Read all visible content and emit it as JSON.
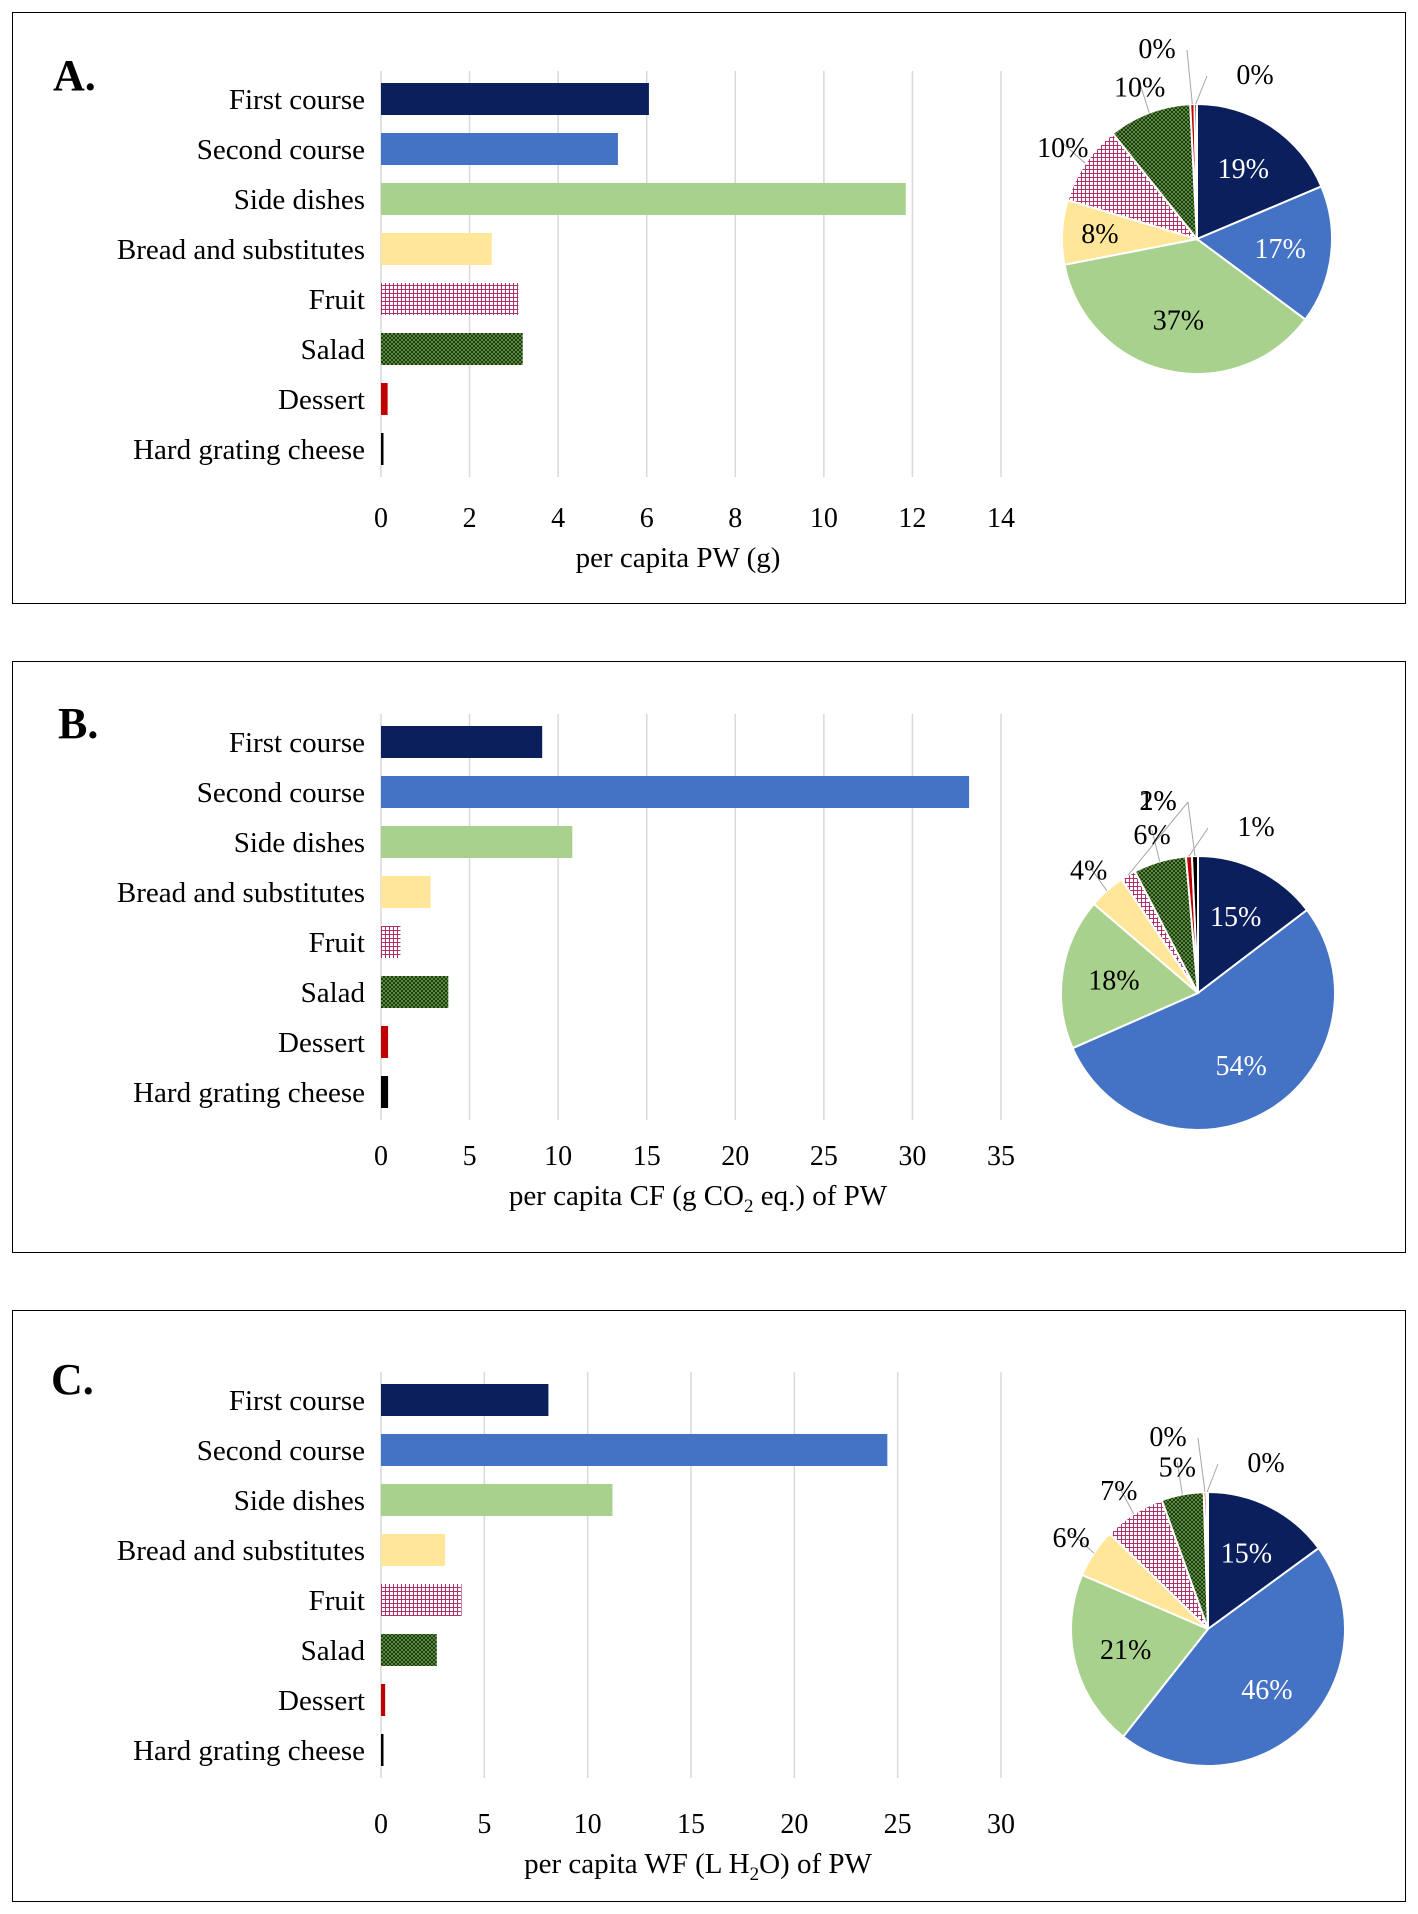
{
  "patterns": {
    "fruit": {
      "fg": "#b0306a",
      "bg": "#ffffff"
    },
    "salad": {
      "fg": "#1d3c14",
      "bg": "#5b8a3c"
    }
  },
  "chart_data": [
    {
      "type": "bar",
      "panel": "A.",
      "orientation": "horizontal",
      "categories": [
        "First course",
        "Second course",
        "Side dishes",
        "Bread and substitutes",
        "Fruit",
        "Salad",
        "Dessert",
        "Hard grating cheese"
      ],
      "values": [
        6.05,
        5.35,
        11.85,
        2.5,
        3.1,
        3.2,
        0.15,
        0.03
      ],
      "colors": [
        "#0b1f5c",
        "#4472c4",
        "#a9d18e",
        "#ffe699",
        "pattern:fruit",
        "pattern:salad",
        "#c00000",
        "#000000"
      ],
      "xlim": [
        0,
        14
      ],
      "xticks": [
        "0",
        "2",
        "4",
        "6",
        "8",
        "10",
        "12",
        "14"
      ],
      "xlabel_parts": [
        "per capita PW (g)"
      ],
      "grid": true,
      "pie": {
        "order": [
          "First course",
          "Second course",
          "Side dishes",
          "Bread and substitutes",
          "Fruit",
          "Salad",
          "Dessert",
          "Hard grating cheese"
        ],
        "values": [
          18.6,
          16.5,
          36.7,
          7.7,
          9.6,
          9.9,
          0.5,
          0.3
        ],
        "labels": [
          "19%",
          "17%",
          "37%",
          "8%",
          "10%",
          "10%",
          "0%",
          "0%"
        ]
      }
    },
    {
      "type": "bar",
      "panel": "B.",
      "orientation": "horizontal",
      "categories": [
        "First course",
        "Second course",
        "Side dishes",
        "Bread and substitutes",
        "Fruit",
        "Salad",
        "Dessert",
        "Hard grating cheese"
      ],
      "values": [
        9.1,
        33.2,
        10.8,
        2.8,
        1.1,
        3.8,
        0.4,
        0.4
      ],
      "colors": [
        "#0b1f5c",
        "#4472c4",
        "#a9d18e",
        "#ffe699",
        "pattern:fruit",
        "pattern:salad",
        "#c00000",
        "#000000"
      ],
      "xlim": [
        0,
        35
      ],
      "xticks": [
        "0",
        "5",
        "10",
        "15",
        "20",
        "25",
        "30",
        "35"
      ],
      "xlabel_parts": [
        "per capita CF (g CO",
        "2",
        " eq.) of PW"
      ],
      "grid": true,
      "pie": {
        "order": [
          "First course",
          "Second course",
          "Side dishes",
          "Bread and substitutes",
          "Fruit",
          "Salad",
          "Dessert",
          "Hard grating cheese"
        ],
        "values": [
          14.6,
          53.6,
          17.8,
          4.3,
          1.8,
          6.2,
          0.7,
          0.7
        ],
        "labels": [
          "15%",
          "54%",
          "18%",
          "4%",
          "2%",
          "6%",
          "1%",
          "1%"
        ]
      }
    },
    {
      "type": "bar",
      "panel": "C.",
      "orientation": "horizontal",
      "categories": [
        "First course",
        "Second course",
        "Side dishes",
        "Bread and substitutes",
        "Fruit",
        "Salad",
        "Dessert",
        "Hard grating cheese"
      ],
      "values": [
        8.1,
        24.5,
        11.2,
        3.1,
        3.9,
        2.7,
        0.2,
        0.1
      ],
      "colors": [
        "#0b1f5c",
        "#4472c4",
        "#a9d18e",
        "#ffe699",
        "pattern:fruit",
        "pattern:salad",
        "#c00000",
        "#000000"
      ],
      "xlim": [
        0,
        30
      ],
      "xticks": [
        "0",
        "5",
        "10",
        "15",
        "20",
        "25",
        "30"
      ],
      "xlabel_parts": [
        "per capita WF (L H",
        "2",
        "O) of PW"
      ],
      "grid": true,
      "pie": {
        "order": [
          "First course",
          "Second course",
          "Side dishes",
          "Bread and substitutes",
          "Fruit",
          "Salad",
          "Dessert",
          "Hard grating cheese"
        ],
        "values": [
          15.0,
          45.8,
          20.9,
          5.8,
          7.3,
          5.0,
          0.3,
          0.2
        ],
        "labels": [
          "15%",
          "46%",
          "21%",
          "6%",
          "7%",
          "5%",
          "0%",
          "0%"
        ]
      }
    }
  ]
}
